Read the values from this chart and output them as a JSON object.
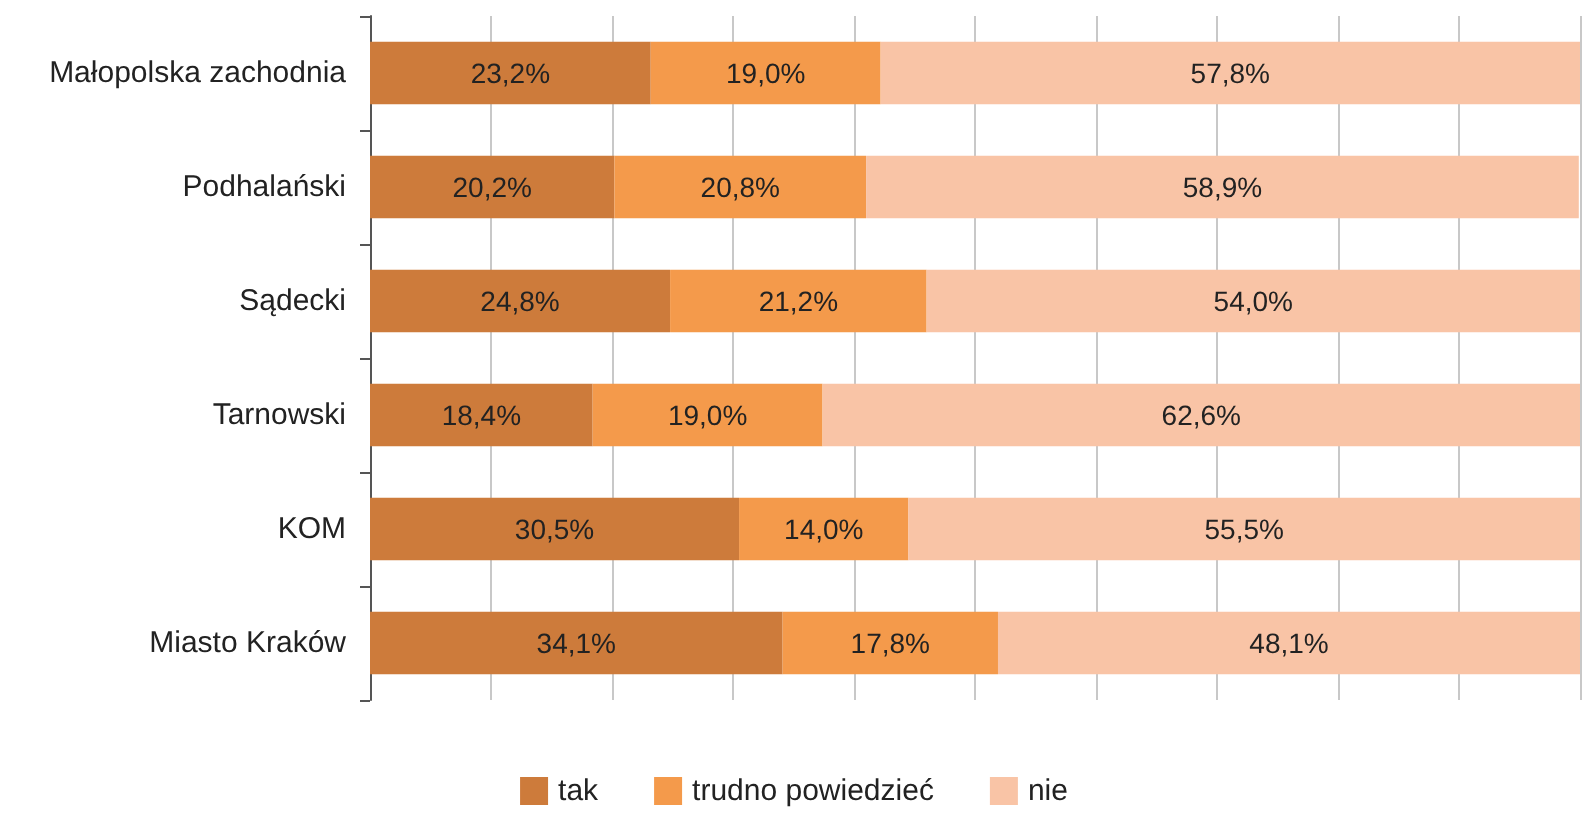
{
  "chart_data": {
    "type": "bar",
    "orientation": "horizontal",
    "stacked": true,
    "categories": [
      "Małopolska zachodnia",
      "Podhalański",
      "Sądecki",
      "Tarnowski",
      "KOM",
      "Miasto Kraków"
    ],
    "series": [
      {
        "name": "tak",
        "color": "#cd7b3b",
        "values": [
          23.2,
          20.2,
          24.8,
          18.4,
          30.5,
          34.1
        ],
        "value_labels": [
          "23,2%",
          "20,2%",
          "24,8%",
          "18,4%",
          "30,5%",
          "34,1%"
        ]
      },
      {
        "name": "trudno powiedzieć",
        "color": "#f49a4b",
        "values": [
          19.0,
          20.8,
          21.2,
          19.0,
          14.0,
          17.8
        ],
        "value_labels": [
          "19,0%",
          "20,8%",
          "21,2%",
          "19,0%",
          "14,0%",
          "17,8%"
        ]
      },
      {
        "name": "nie",
        "color": "#f9c4a6",
        "values": [
          57.8,
          58.9,
          54.0,
          62.6,
          55.5,
          48.1
        ],
        "value_labels": [
          "57,8%",
          "58,9%",
          "54,0%",
          "62,6%",
          "55,5%",
          "48,1%"
        ]
      }
    ],
    "xlim": [
      0,
      100
    ],
    "xticks": [
      {
        "value": 0,
        "label": null
      },
      {
        "value": 10,
        "label": null
      },
      {
        "value": 20,
        "label": null
      },
      {
        "value": 30,
        "label": null
      },
      {
        "value": 40,
        "label": null
      },
      {
        "value": 50,
        "label": null
      },
      {
        "value": 60,
        "label": null
      },
      {
        "value": 70,
        "label": null
      },
      {
        "value": 80,
        "label": null
      },
      {
        "value": 90,
        "label": null
      },
      {
        "value": 100,
        "label": null
      }
    ],
    "grid": "x",
    "legend": "bottom",
    "tick_labels": "y"
  }
}
